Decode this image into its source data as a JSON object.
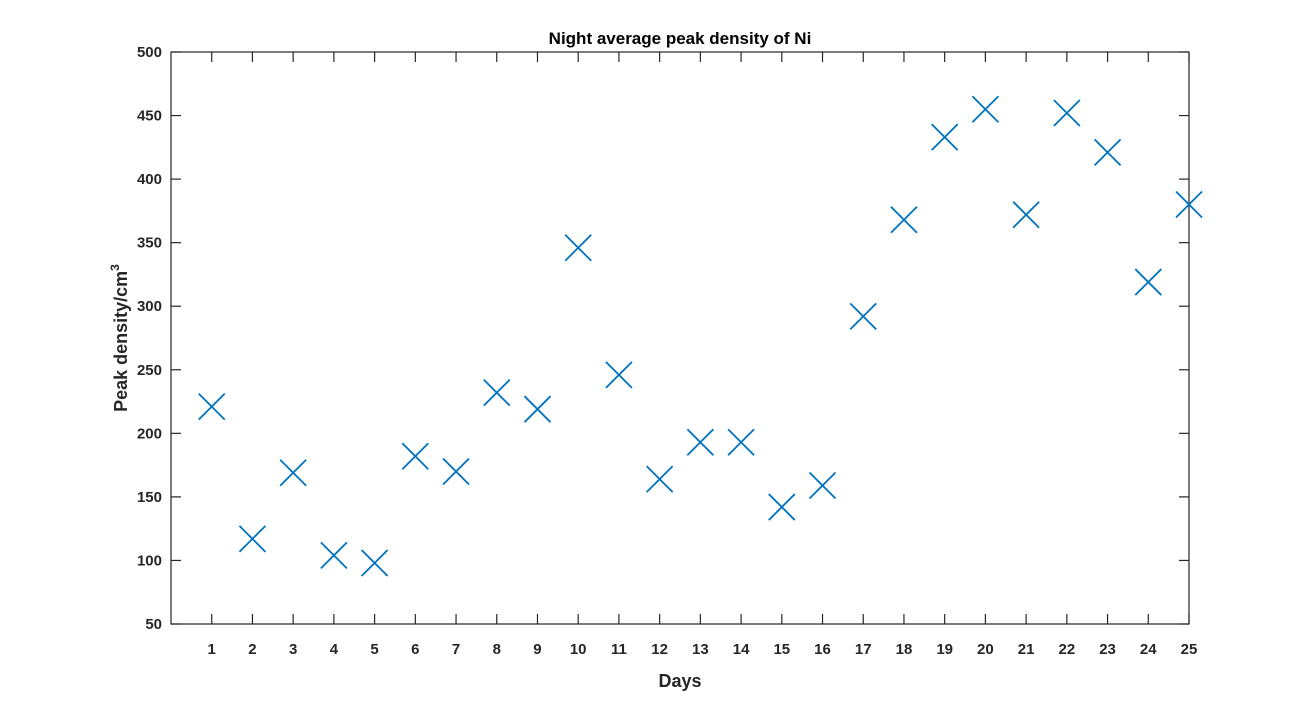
{
  "chart_data": {
    "type": "scatter",
    "title": "Night average peak density of Ni",
    "xlabel": "Days",
    "ylabel_main": "Peak density/cm",
    "ylabel_superscript": "3",
    "xlim": [
      0,
      25
    ],
    "ylim": [
      50,
      500
    ],
    "xticks": [
      1,
      2,
      3,
      4,
      5,
      6,
      7,
      8,
      9,
      10,
      11,
      12,
      13,
      14,
      15,
      16,
      17,
      18,
      19,
      20,
      21,
      22,
      23,
      24,
      25
    ],
    "yticks": [
      50,
      100,
      150,
      200,
      250,
      300,
      350,
      400,
      450,
      500
    ],
    "marker": "x",
    "grid": false,
    "series": [
      {
        "x": [
          1,
          2,
          3,
          4,
          5,
          6,
          7,
          8,
          9,
          10,
          11,
          12,
          13,
          14,
          15,
          16,
          17,
          18,
          19,
          20,
          21,
          22,
          23,
          24,
          25
        ],
        "y": [
          221,
          117,
          169,
          104,
          98,
          182,
          170,
          232,
          219,
          346,
          246,
          164,
          193,
          193,
          142,
          159,
          292,
          368,
          433,
          455,
          372,
          452,
          421,
          319,
          380
        ]
      }
    ],
    "colors": {
      "marker": "#0072BD",
      "axis": "#262626"
    }
  }
}
